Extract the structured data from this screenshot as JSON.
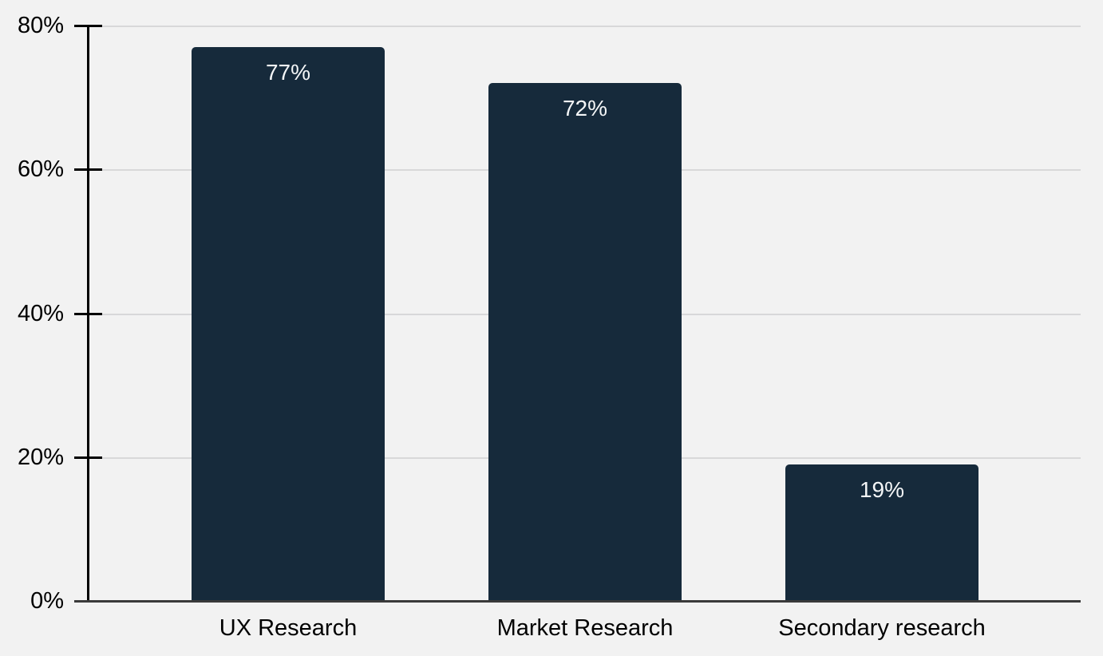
{
  "chart_data": {
    "type": "bar",
    "title": "",
    "xlabel": "",
    "ylabel": "",
    "categories": [
      "UX Research",
      "Market Research",
      "Secondary research"
    ],
    "values": [
      77,
      72,
      19
    ],
    "data_labels": [
      "77%",
      "72%",
      "19%"
    ],
    "y_tick_values": [
      0,
      20,
      40,
      60,
      80
    ],
    "y_tick_labels": [
      "0%",
      "20%",
      "40%",
      "60%",
      "80%"
    ],
    "ylim": [
      0,
      80
    ],
    "grid": true,
    "legend": false,
    "colors": {
      "background": "#f2f2f2",
      "bar": "#162a3b",
      "bar_value_text": "#f4f6f7",
      "gridline": "#d8d8d9",
      "y_axis": "#000000",
      "x_axis": "#3a3a3a",
      "tick_text": "#000000"
    }
  }
}
